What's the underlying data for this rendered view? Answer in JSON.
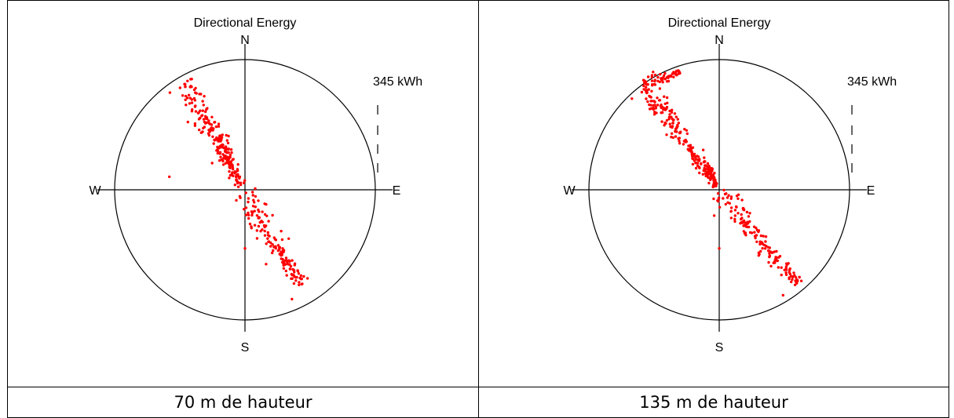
{
  "chart_data": [
    {
      "type": "scatter",
      "polar": true,
      "title": "Directional Energy",
      "compass_labels": {
        "n": "N",
        "e": "E",
        "s": "S",
        "w": "W"
      },
      "scale_label": "345 kWh",
      "point_color": "#ff0000",
      "caption": "70 m de hauteur",
      "clusters": [
        {
          "from": [
            -0.46,
            0.83
          ],
          "to": [
            -0.03,
            0.03
          ],
          "count": 170,
          "spread": 0.052
        },
        {
          "from": [
            0.0,
            -0.02
          ],
          "to": [
            0.43,
            -0.74
          ],
          "count": 150,
          "spread": 0.06
        },
        {
          "from": [
            -0.2,
            0.42
          ],
          "to": [
            -0.05,
            0.07
          ],
          "count": 45,
          "spread": 0.03
        }
      ],
      "points": [
        [
          -0.58,
          0.1
        ],
        [
          0.36,
          -0.84
        ],
        [
          0.48,
          -0.68
        ],
        [
          0.0,
          -0.45
        ]
      ]
    },
    {
      "type": "scatter",
      "polar": true,
      "title": "Directional Energy",
      "compass_labels": {
        "n": "N",
        "e": "E",
        "s": "S",
        "w": "W"
      },
      "scale_label": "345 kWh",
      "point_color": "#ff0000",
      "caption": "135 m de hauteur",
      "clusters": [
        {
          "from": [
            -0.6,
            0.83
          ],
          "to": [
            -0.02,
            0.03
          ],
          "count": 190,
          "spread": 0.048
        },
        {
          "from": [
            -0.6,
            0.8
          ],
          "to": [
            -0.3,
            0.9
          ],
          "count": 55,
          "spread": 0.03
        },
        {
          "from": [
            0.0,
            -0.02
          ],
          "to": [
            0.6,
            -0.72
          ],
          "count": 160,
          "spread": 0.055
        },
        {
          "from": [
            -0.1,
            0.2
          ],
          "to": [
            -0.02,
            0.04
          ],
          "count": 40,
          "spread": 0.02
        }
      ],
      "points": [
        [
          0.49,
          -0.81
        ],
        [
          0.63,
          -0.7
        ],
        [
          0.0,
          -0.45
        ],
        [
          -0.67,
          0.7
        ]
      ]
    }
  ]
}
